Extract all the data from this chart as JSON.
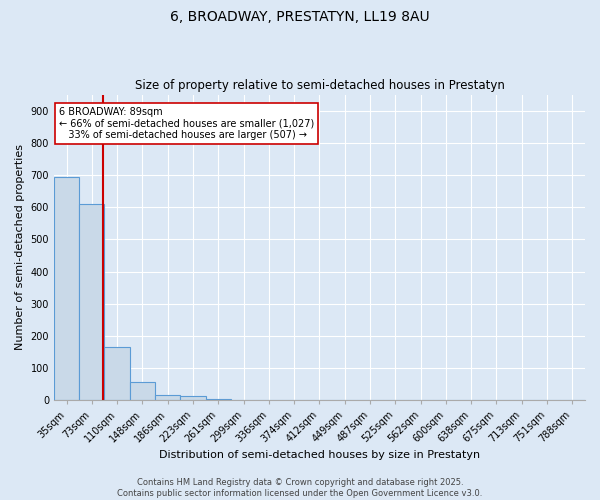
{
  "title": "6, BROADWAY, PRESTATYN, LL19 8AU",
  "subtitle": "Size of property relative to semi-detached houses in Prestatyn",
  "xlabel": "Distribution of semi-detached houses by size in Prestatyn",
  "ylabel": "Number of semi-detached properties",
  "categories": [
    "35sqm",
    "73sqm",
    "110sqm",
    "148sqm",
    "186sqm",
    "223sqm",
    "261sqm",
    "299sqm",
    "336sqm",
    "374sqm",
    "412sqm",
    "449sqm",
    "487sqm",
    "525sqm",
    "562sqm",
    "600sqm",
    "638sqm",
    "675sqm",
    "713sqm",
    "751sqm",
    "788sqm"
  ],
  "values": [
    693,
    611,
    165,
    58,
    18,
    15,
    4,
    0,
    0,
    0,
    0,
    0,
    0,
    0,
    0,
    0,
    0,
    0,
    0,
    0,
    0
  ],
  "bar_facecolor": "#c9d9e8",
  "bar_edgecolor": "#5b9bd5",
  "vline_color": "#cc0000",
  "annotation_text": "6 BROADWAY: 89sqm\n← 66% of semi-detached houses are smaller (1,027)\n   33% of semi-detached houses are larger (507) →",
  "annotation_box_edgecolor": "#cc0000",
  "annotation_box_facecolor": "#ffffff",
  "background_color": "#dce8f5",
  "grid_color": "#ffffff",
  "ylim": [
    0,
    950
  ],
  "yticks": [
    0,
    100,
    200,
    300,
    400,
    500,
    600,
    700,
    800,
    900
  ],
  "footer": "Contains HM Land Registry data © Crown copyright and database right 2025.\nContains public sector information licensed under the Open Government Licence v3.0.",
  "title_fontsize": 10,
  "subtitle_fontsize": 8.5,
  "ylabel_fontsize": 8,
  "xlabel_fontsize": 8,
  "tick_fontsize": 7,
  "footer_fontsize": 6
}
